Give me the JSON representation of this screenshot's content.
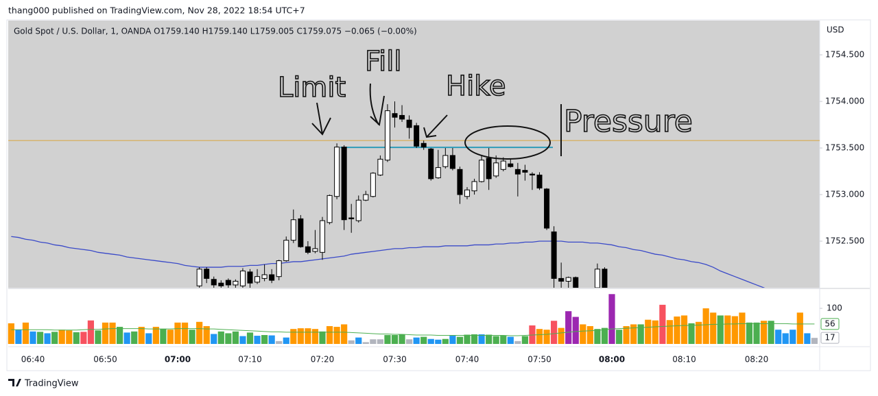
{
  "header": {
    "publisher": "thang000 published on TradingView.com, Nov 28, 2022 18:54 UTC+7"
  },
  "footer": {
    "brand": "TradingView"
  },
  "chart_data": {
    "type": "candlestick",
    "title": "Gold Spot / U.S. Dollar, 1, OANDA  O1759.140  H1759.140  L1759.005  C1759.075  −0.065 (−0.00%)",
    "currency": "USD",
    "background": "#d1d1d1",
    "up_color": "#ffffff",
    "down_color": "#000000",
    "categories": [
      null,
      null,
      null,
      "06:40",
      null,
      null,
      null,
      null,
      null,
      null,
      null,
      null,
      null,
      "06:50",
      null,
      null,
      null,
      null,
      null,
      null,
      null,
      null,
      null,
      "07:00",
      null,
      null,
      null,
      null,
      null,
      null,
      null,
      null,
      null,
      "07:10",
      null,
      null,
      null,
      null,
      null,
      null,
      null,
      null,
      null,
      "07:20",
      null,
      null,
      null,
      null,
      null,
      null,
      null,
      null,
      null,
      "07:30",
      null,
      null,
      null,
      null,
      null,
      null,
      null,
      null,
      null,
      "07:40",
      null,
      null,
      null,
      null,
      null,
      null,
      null,
      null,
      null,
      "07:50",
      null,
      null,
      null,
      null,
      null,
      null,
      null,
      null,
      null,
      "08:00",
      null,
      null,
      null,
      null,
      null,
      null,
      null,
      null,
      null,
      "08:10",
      null,
      null,
      null,
      null,
      null,
      null,
      null,
      null,
      null,
      "08:20",
      null,
      null,
      null,
      null,
      null,
      null,
      null,
      null
    ],
    "open": [
      null,
      null,
      null,
      null,
      null,
      null,
      null,
      null,
      null,
      null,
      null,
      null,
      null,
      null,
      null,
      null,
      null,
      null,
      null,
      null,
      null,
      null,
      null,
      null,
      null,
      null,
      1752.02,
      1752.2,
      1752.09,
      1752.05,
      1752.08,
      1752.03,
      1752.02,
      1752.17,
      1752.06,
      1752.1,
      1752.14,
      1752.12,
      1752.29,
      1752.51,
      1752.74,
      1752.44,
      1752.39,
      1752.38,
      1752.7,
      1752.98,
      1753.51,
      1752.75,
      1752.72,
      1752.94,
      1752.98,
      1753.21,
      1753.37,
      1753.87,
      1753.85,
      1753.8,
      1753.74,
      1753.55,
      1753.49,
      1753.18,
      1753.3,
      1753.42,
      1753.27,
      1752.98,
      1753.04,
      1753.14,
      1753.39,
      1753.2,
      1753.27,
      1753.33,
      1753.27,
      1753.26,
      1753.22,
      1753.21,
      1753.06,
      1752.6,
      1752.1,
      1752.07,
      1752.11,
      null,
      null,
      1752.0,
      1752.2,
      null,
      null,
      null,
      null,
      null,
      null,
      null,
      null,
      null,
      null,
      null,
      null,
      null,
      null,
      null,
      null,
      null,
      null,
      null,
      null,
      null,
      null,
      null,
      null,
      null,
      null,
      null,
      null,
      null
    ],
    "high": [
      null,
      null,
      null,
      null,
      null,
      null,
      null,
      null,
      null,
      null,
      null,
      null,
      null,
      null,
      null,
      null,
      null,
      null,
      null,
      null,
      null,
      null,
      null,
      null,
      null,
      null,
      1752.22,
      1752.22,
      1752.12,
      1752.08,
      1752.1,
      1752.09,
      1752.21,
      1752.2,
      1752.2,
      1752.25,
      1752.2,
      1752.3,
      1752.55,
      1752.84,
      1752.78,
      1752.5,
      1752.62,
      1752.76,
      1753.0,
      1753.55,
      1753.53,
      1752.9,
      1752.99,
      1753.04,
      1753.24,
      1753.42,
      1753.97,
      1754.0,
      1753.96,
      1753.85,
      1753.77,
      1753.58,
      1753.5,
      1753.48,
      1753.5,
      1753.5,
      1753.3,
      1753.08,
      1753.17,
      1753.42,
      1753.5,
      1753.42,
      1753.4,
      1753.38,
      1753.34,
      1753.32,
      1753.24,
      1753.24,
      1753.07,
      1752.66,
      1752.27,
      1752.12,
      1752.12,
      null,
      null,
      1752.26,
      1752.22,
      null,
      null,
      null,
      null,
      null,
      null,
      null,
      null,
      null,
      null,
      null,
      null,
      null,
      null,
      null,
      null,
      null,
      null,
      null,
      null,
      null,
      null,
      null,
      null,
      null,
      null,
      null,
      null,
      null
    ],
    "low": [
      null,
      null,
      null,
      null,
      null,
      null,
      null,
      null,
      null,
      null,
      null,
      null,
      null,
      null,
      null,
      null,
      null,
      null,
      null,
      null,
      null,
      null,
      null,
      null,
      null,
      null,
      1752.0,
      1752.05,
      1752.0,
      1752.0,
      1752.0,
      1752.0,
      1752.0,
      1752.0,
      1752.04,
      1752.07,
      1752.05,
      1752.08,
      1752.28,
      1752.48,
      1752.43,
      1752.36,
      1752.37,
      1752.3,
      1752.68,
      1752.95,
      1752.62,
      1752.59,
      1752.7,
      1752.93,
      1752.97,
      1753.2,
      1753.35,
      1753.72,
      1753.78,
      1753.6,
      1753.5,
      1753.48,
      1753.15,
      1753.17,
      1753.28,
      1753.26,
      1752.9,
      1752.95,
      1753.0,
      1753.13,
      1753.05,
      1753.18,
      1753.25,
      1753.29,
      1752.98,
      1753.15,
      1753.05,
      1753.05,
      1752.62,
      1752.0,
      1752.0,
      1752.0,
      1752.0,
      null,
      null,
      1752.0,
      1752.0,
      null,
      null,
      null,
      null,
      null,
      null,
      null,
      null,
      null,
      null,
      null,
      null,
      null,
      null,
      null,
      null,
      null,
      null,
      null,
      null,
      null,
      null,
      null,
      null,
      null,
      null,
      null,
      null,
      null
    ],
    "close": [
      null,
      null,
      null,
      null,
      null,
      null,
      null,
      null,
      null,
      null,
      null,
      null,
      null,
      null,
      null,
      null,
      null,
      null,
      null,
      null,
      null,
      null,
      null,
      null,
      null,
      null,
      1752.2,
      1752.1,
      1752.03,
      1752.02,
      1752.03,
      1752.07,
      1752.18,
      1752.05,
      1752.12,
      1752.14,
      1752.08,
      1752.29,
      1752.51,
      1752.73,
      1752.44,
      1752.38,
      1752.42,
      1752.72,
      1752.99,
      1753.51,
      1752.73,
      1752.74,
      1752.94,
      1753.0,
      1753.23,
      1753.38,
      1753.9,
      1753.83,
      1753.81,
      1753.72,
      1753.52,
      1753.51,
      1753.17,
      1753.29,
      1753.42,
      1753.28,
      1753.0,
      1753.05,
      1753.14,
      1753.37,
      1753.17,
      1753.34,
      1753.36,
      1753.3,
      1753.22,
      1753.24,
      1753.21,
      1753.07,
      1752.64,
      1752.1,
      1752.07,
      1752.11,
      1752.0,
      null,
      null,
      1752.2,
      1752.0,
      null,
      null,
      null,
      null,
      null,
      null,
      null,
      null,
      null,
      null,
      null,
      null,
      null,
      null,
      null,
      null,
      null,
      null,
      null,
      null,
      null,
      null,
      null,
      null,
      null,
      null,
      null,
      null,
      null
    ],
    "ylim": [
      1752.0,
      1754.868
    ],
    "yticks": [
      {
        "value": 1752.5,
        "label": "1752.500"
      },
      {
        "value": 1753,
        "label": "1753.000"
      },
      {
        "value": 1753.5,
        "label": "1753.500"
      },
      {
        "value": 1754,
        "label": "1754.000"
      },
      {
        "value": 1754.5,
        "label": "1754.500"
      }
    ],
    "ma": {
      "color": "#3949c8",
      "values": [
        1752.55,
        1752.54,
        1752.52,
        1752.51,
        1752.49,
        1752.48,
        1752.46,
        1752.45,
        1752.43,
        1752.42,
        1752.41,
        1752.4,
        1752.38,
        1752.37,
        1752.36,
        1752.35,
        1752.33,
        1752.32,
        1752.31,
        1752.3,
        1752.29,
        1752.28,
        1752.27,
        1752.26,
        1752.24,
        1752.23,
        1752.22,
        1752.22,
        1752.22,
        1752.22,
        1752.23,
        1752.23,
        1752.23,
        1752.24,
        1752.24,
        1752.25,
        1752.26,
        1752.26,
        1752.27,
        1752.28,
        1752.28,
        1752.29,
        1752.3,
        1752.31,
        1752.32,
        1752.33,
        1752.34,
        1752.36,
        1752.37,
        1752.38,
        1752.39,
        1752.4,
        1752.41,
        1752.42,
        1752.42,
        1752.43,
        1752.43,
        1752.44,
        1752.44,
        1752.44,
        1752.45,
        1752.45,
        1752.45,
        1752.45,
        1752.46,
        1752.46,
        1752.46,
        1752.47,
        1752.47,
        1752.48,
        1752.48,
        1752.49,
        1752.49,
        1752.5,
        1752.5,
        1752.5,
        1752.5,
        1752.49,
        1752.49,
        1752.49,
        1752.48,
        1752.48,
        1752.47,
        1752.46,
        1752.44,
        1752.43,
        1752.41,
        1752.4,
        1752.38,
        1752.36,
        1752.35,
        1752.33,
        1752.31,
        1752.3,
        1752.28,
        1752.27,
        1752.25,
        1752.22,
        1752.18,
        1752.15,
        1752.12,
        1752.09,
        1752.06,
        1752.03,
        1752.0,
        1751.97,
        1751.94,
        1751.91,
        1751.88,
        1751.85,
        1751.82,
        1751.79
      ]
    },
    "hlines": [
      {
        "value": 1753.58,
        "color": "#d9a53c"
      },
      {
        "value": 1753.507,
        "color": "#2e9bb8"
      }
    ],
    "annotations": [
      "Limit",
      "Fill",
      "Hike",
      "Pressure"
    ],
    "volume": {
      "ylim": [
        0,
        154
      ],
      "yticks": [
        100
      ],
      "values": [
        58,
        40,
        60,
        35,
        34,
        30,
        34,
        40,
        38,
        33,
        34,
        66,
        38,
        60,
        60,
        48,
        32,
        35,
        48,
        30,
        48,
        42,
        40,
        60,
        60,
        40,
        62,
        50,
        28,
        35,
        30,
        35,
        22,
        32,
        23,
        25,
        24,
        8,
        18,
        42,
        44,
        44,
        42,
        35,
        50,
        48,
        55,
        10,
        18,
        5,
        13,
        13,
        25,
        25,
        27,
        13,
        18,
        20,
        14,
        12,
        14,
        23,
        20,
        26,
        27,
        27,
        26,
        22,
        23,
        20,
        8,
        22,
        52,
        42,
        40,
        65,
        45,
        92,
        76,
        55,
        50,
        42,
        45,
        140,
        40,
        50,
        55,
        55,
        68,
        66,
        110,
        67,
        77,
        80,
        58,
        62,
        100,
        88,
        80,
        80,
        78,
        88,
        60,
        60,
        65,
        65,
        40,
        30,
        40,
        88,
        30,
        17
      ],
      "colors": [
        "#ff9800",
        "#2196f3",
        "#ff9800",
        "#2196f3",
        "#4caf50",
        "#2196f3",
        "#4caf50",
        "#ff9800",
        "#ff9800",
        "#4caf50",
        "#f7525f",
        "#f7525f",
        "#4caf50",
        "#ff9800",
        "#ff9800",
        "#4caf50",
        "#2196f3",
        "#4caf50",
        "#ff9800",
        "#2196f3",
        "#ff9800",
        "#4caf50",
        "#ff9800",
        "#ff9800",
        "#ff9800",
        "#4caf50",
        "#ff9800",
        "#ff9800",
        "#2196f3",
        "#4caf50",
        "#4caf50",
        "#4caf50",
        "#2196f3",
        "#4caf50",
        "#2196f3",
        "#4caf50",
        "#2196f3",
        "#b2b5be",
        "#2196f3",
        "#ff9800",
        "#ff9800",
        "#ff9800",
        "#ff9800",
        "#4caf50",
        "#ff9800",
        "#ff9800",
        "#ff9800",
        "#b2b5be",
        "#2196f3",
        "#b2b5be",
        "#b2b5be",
        "#b2b5be",
        "#4caf50",
        "#4caf50",
        "#4caf50",
        "#b2b5be",
        "#2196f3",
        "#4caf50",
        "#2196f3",
        "#2196f3",
        "#4caf50",
        "#2196f3",
        "#4caf50",
        "#4caf50",
        "#4caf50",
        "#2196f3",
        "#4caf50",
        "#4caf50",
        "#4caf50",
        "#2196f3",
        "#b2b5be",
        "#4caf50",
        "#f7525f",
        "#ff9800",
        "#ff9800",
        "#f7525f",
        "#ff9800",
        "#9c27b0",
        "#9c27b0",
        "#ff9800",
        "#ff9800",
        "#4caf50",
        "#4caf50",
        "#9c27b0",
        "#4caf50",
        "#ff9800",
        "#ff9800",
        "#4caf50",
        "#ff9800",
        "#ff9800",
        "#f7525f",
        "#ff9800",
        "#ff9800",
        "#ff9800",
        "#4caf50",
        "#ff9800",
        "#ff9800",
        "#ff9800",
        "#4caf50",
        "#ff9800",
        "#ff9800",
        "#ff9800",
        "#4caf50",
        "#4caf50",
        "#ff9800",
        "#4caf50",
        "#2196f3",
        "#2196f3",
        "#2196f3",
        "#ff9800",
        "#2196f3",
        "#b2b5be"
      ],
      "ma": {
        "color": "#4caf50",
        "values": [
          40,
          40,
          40,
          40,
          40,
          40,
          39,
          39,
          39,
          39,
          40,
          41,
          41,
          42,
          43,
          43,
          43,
          43,
          43,
          42,
          42,
          42,
          42,
          43,
          43,
          43,
          43,
          42,
          42,
          41,
          40,
          39,
          38,
          37,
          36,
          35,
          34,
          34,
          33,
          33,
          33,
          33,
          33,
          33,
          33,
          33,
          33,
          32,
          31,
          30,
          29,
          28,
          28,
          27,
          27,
          26,
          25,
          25,
          25,
          24,
          24,
          24,
          24,
          24,
          24,
          24,
          24,
          24,
          24,
          23,
          23,
          24,
          25,
          26,
          27,
          29,
          31,
          33,
          35,
          36,
          37,
          38,
          40,
          42,
          43,
          44,
          45,
          46,
          47,
          48,
          49,
          50,
          51,
          52,
          52,
          53,
          54,
          55,
          55,
          56,
          56,
          57,
          57,
          57,
          57,
          57,
          57,
          57,
          56,
          56,
          56,
          56
        ]
      }
    }
  }
}
